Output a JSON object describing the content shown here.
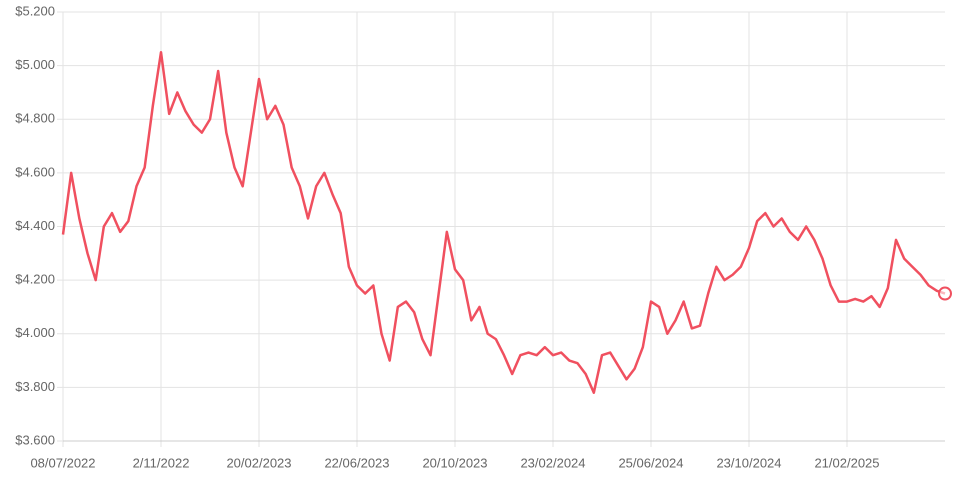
{
  "chart_data": {
    "type": "line",
    "categories": [
      "08/07/2022",
      null,
      null,
      null,
      null,
      null,
      null,
      null,
      null,
      null,
      null,
      null,
      "2/11/2022",
      null,
      null,
      null,
      null,
      null,
      null,
      null,
      null,
      null,
      null,
      null,
      "20/02/2023",
      null,
      null,
      null,
      null,
      null,
      null,
      null,
      null,
      null,
      null,
      null,
      "22/06/2023",
      null,
      null,
      null,
      null,
      null,
      null,
      null,
      null,
      null,
      null,
      null,
      "20/10/2023",
      null,
      null,
      null,
      null,
      null,
      null,
      null,
      null,
      null,
      null,
      null,
      "23/02/2024",
      null,
      null,
      null,
      null,
      null,
      null,
      null,
      null,
      null,
      null,
      null,
      "25/06/2024",
      null,
      null,
      null,
      null,
      null,
      null,
      null,
      null,
      null,
      null,
      null,
      "23/10/2024",
      null,
      null,
      null,
      null,
      null,
      null,
      null,
      null,
      null,
      null,
      null,
      "21/02/2025",
      null,
      null,
      null,
      null,
      null,
      null,
      null,
      null,
      null,
      null,
      null,
      null
    ],
    "values": [
      4.37,
      4.6,
      4.43,
      4.3,
      4.2,
      4.4,
      4.45,
      4.38,
      4.42,
      4.55,
      4.62,
      4.85,
      5.05,
      4.82,
      4.9,
      4.83,
      4.78,
      4.75,
      4.8,
      4.98,
      4.75,
      4.62,
      4.55,
      4.75,
      4.95,
      4.8,
      4.85,
      4.78,
      4.62,
      4.55,
      4.43,
      4.55,
      4.6,
      4.52,
      4.45,
      4.25,
      4.18,
      4.15,
      4.18,
      4.0,
      3.9,
      4.1,
      4.12,
      4.08,
      3.98,
      3.92,
      4.15,
      4.38,
      4.24,
      4.2,
      4.05,
      4.1,
      4.0,
      3.98,
      3.92,
      3.85,
      3.92,
      3.93,
      3.92,
      3.95,
      3.92,
      3.93,
      3.9,
      3.89,
      3.85,
      3.78,
      3.92,
      3.93,
      3.88,
      3.83,
      3.87,
      3.95,
      4.12,
      4.1,
      4.0,
      4.05,
      4.12,
      4.02,
      4.03,
      4.15,
      4.25,
      4.2,
      4.22,
      4.25,
      4.32,
      4.42,
      4.45,
      4.4,
      4.43,
      4.38,
      4.35,
      4.4,
      4.35,
      4.28,
      4.18,
      4.12,
      4.12,
      4.13,
      4.12,
      4.14,
      4.1,
      4.17,
      4.35,
      4.28,
      4.25,
      4.22,
      4.18,
      4.16,
      4.15
    ],
    "color": "#f0505f",
    "ylim": [
      3.6,
      5.2
    ],
    "yticks": [
      {
        "value": 3.6,
        "label": "$3.600"
      },
      {
        "value": 3.8,
        "label": "$3.800"
      },
      {
        "value": 4.0,
        "label": "$4.000"
      },
      {
        "value": 4.2,
        "label": "$4.200"
      },
      {
        "value": 4.4,
        "label": "$4.400"
      },
      {
        "value": 4.6,
        "label": "$4.600"
      },
      {
        "value": 4.8,
        "label": "$4.800"
      },
      {
        "value": 5.0,
        "label": "$5.000"
      },
      {
        "value": 5.2,
        "label": "$5.200"
      }
    ],
    "grid": true
  }
}
